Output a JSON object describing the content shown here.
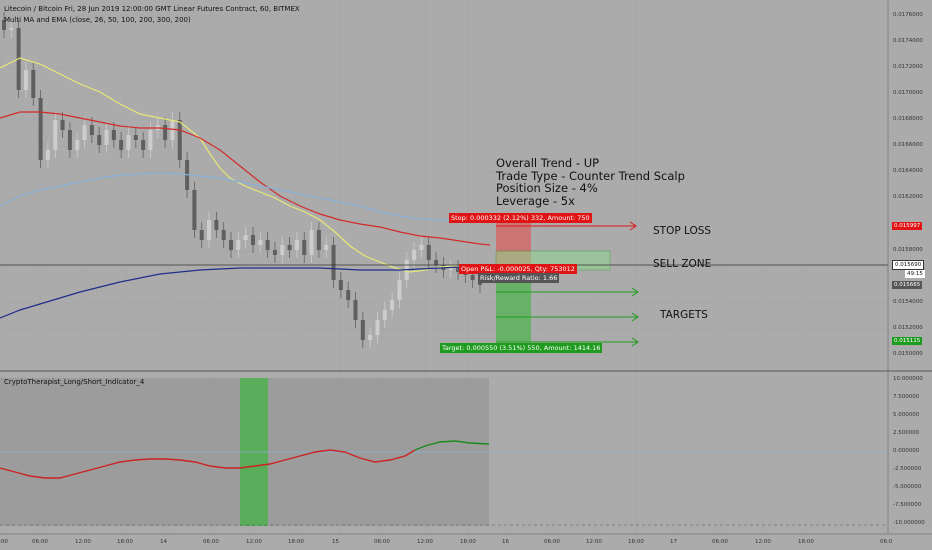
{
  "header": {
    "symbol_line": "Litecoin / Bitcoin Fri, 28 Jun 2019 12:00:00 GMT Linear Futures Contract, 60, BITMEX",
    "indicator_line": "Multi MA and EMA (close, 26, 50, 100, 200, 300, 200)"
  },
  "notes": {
    "line1": "Overall Trend - UP",
    "line2": "Trade Type - Counter Trend Scalp",
    "line3": "Position Size - 4%",
    "line4": "Leverage - 5x"
  },
  "labels": {
    "stop_loss": "STOP LOSS",
    "sell_zone": "SELL ZONE",
    "targets": "TARGETS"
  },
  "position": {
    "stop_tag": "Stop: 0.000332 (2.12%) 332, Amount: 750",
    "open_tag": "Open P&L: -0.000025, Qty: 753012",
    "rr_tag": "Risk/Reward Ratio: 1.66",
    "target_tag": "Target: 0.000550 (3.51%) 550, Amount: 1414.16"
  },
  "price_axis": {
    "ticks": [
      "0.0176000",
      "0.0174000",
      "0.0172000",
      "0.0170000",
      "0.0168000",
      "0.0166000",
      "0.0164000",
      "0.0162000",
      "0.0158000",
      "0.0154000",
      "0.0152000",
      "0.0150000"
    ],
    "stop_price": "0.015997",
    "current_price": "0.015690",
    "countdown": "49:15",
    "entry_price": "0.015665",
    "target_price": "0.015115"
  },
  "indicator": {
    "name": "CryptoTherapist_Long/Short_Indicator_4",
    "ticks": [
      "10.000000",
      "7.500000",
      "5.000000",
      "2.500000",
      "0.000000",
      "-2.500000",
      "-5.000000",
      "-7.500000",
      "-10.000000"
    ]
  },
  "time_axis": {
    "ticks": [
      "00:00",
      "06:00",
      "12:00",
      "18:00",
      "14",
      "06:00",
      "12:00",
      "18:00",
      "15",
      "06:00",
      "12:00",
      "18:00",
      "16",
      "06:00",
      "12:00",
      "18:00",
      "17",
      "06:00",
      "12:00",
      "18:00",
      "06:0"
    ]
  },
  "colors": {
    "background": "#ababab",
    "bull_candle": "#cdcdcd",
    "bear_candle": "#5f5f5f",
    "ma_yellow": "#e8e878",
    "ma_red": "#d22b2b",
    "ma_lightblue": "#87b0d8",
    "ma_navy": "#1f2e8c",
    "stop_red": "#e01414",
    "target_green": "#1f9c1f",
    "osc_red": "#cc2222",
    "osc_green": "#1e8a1e"
  }
}
